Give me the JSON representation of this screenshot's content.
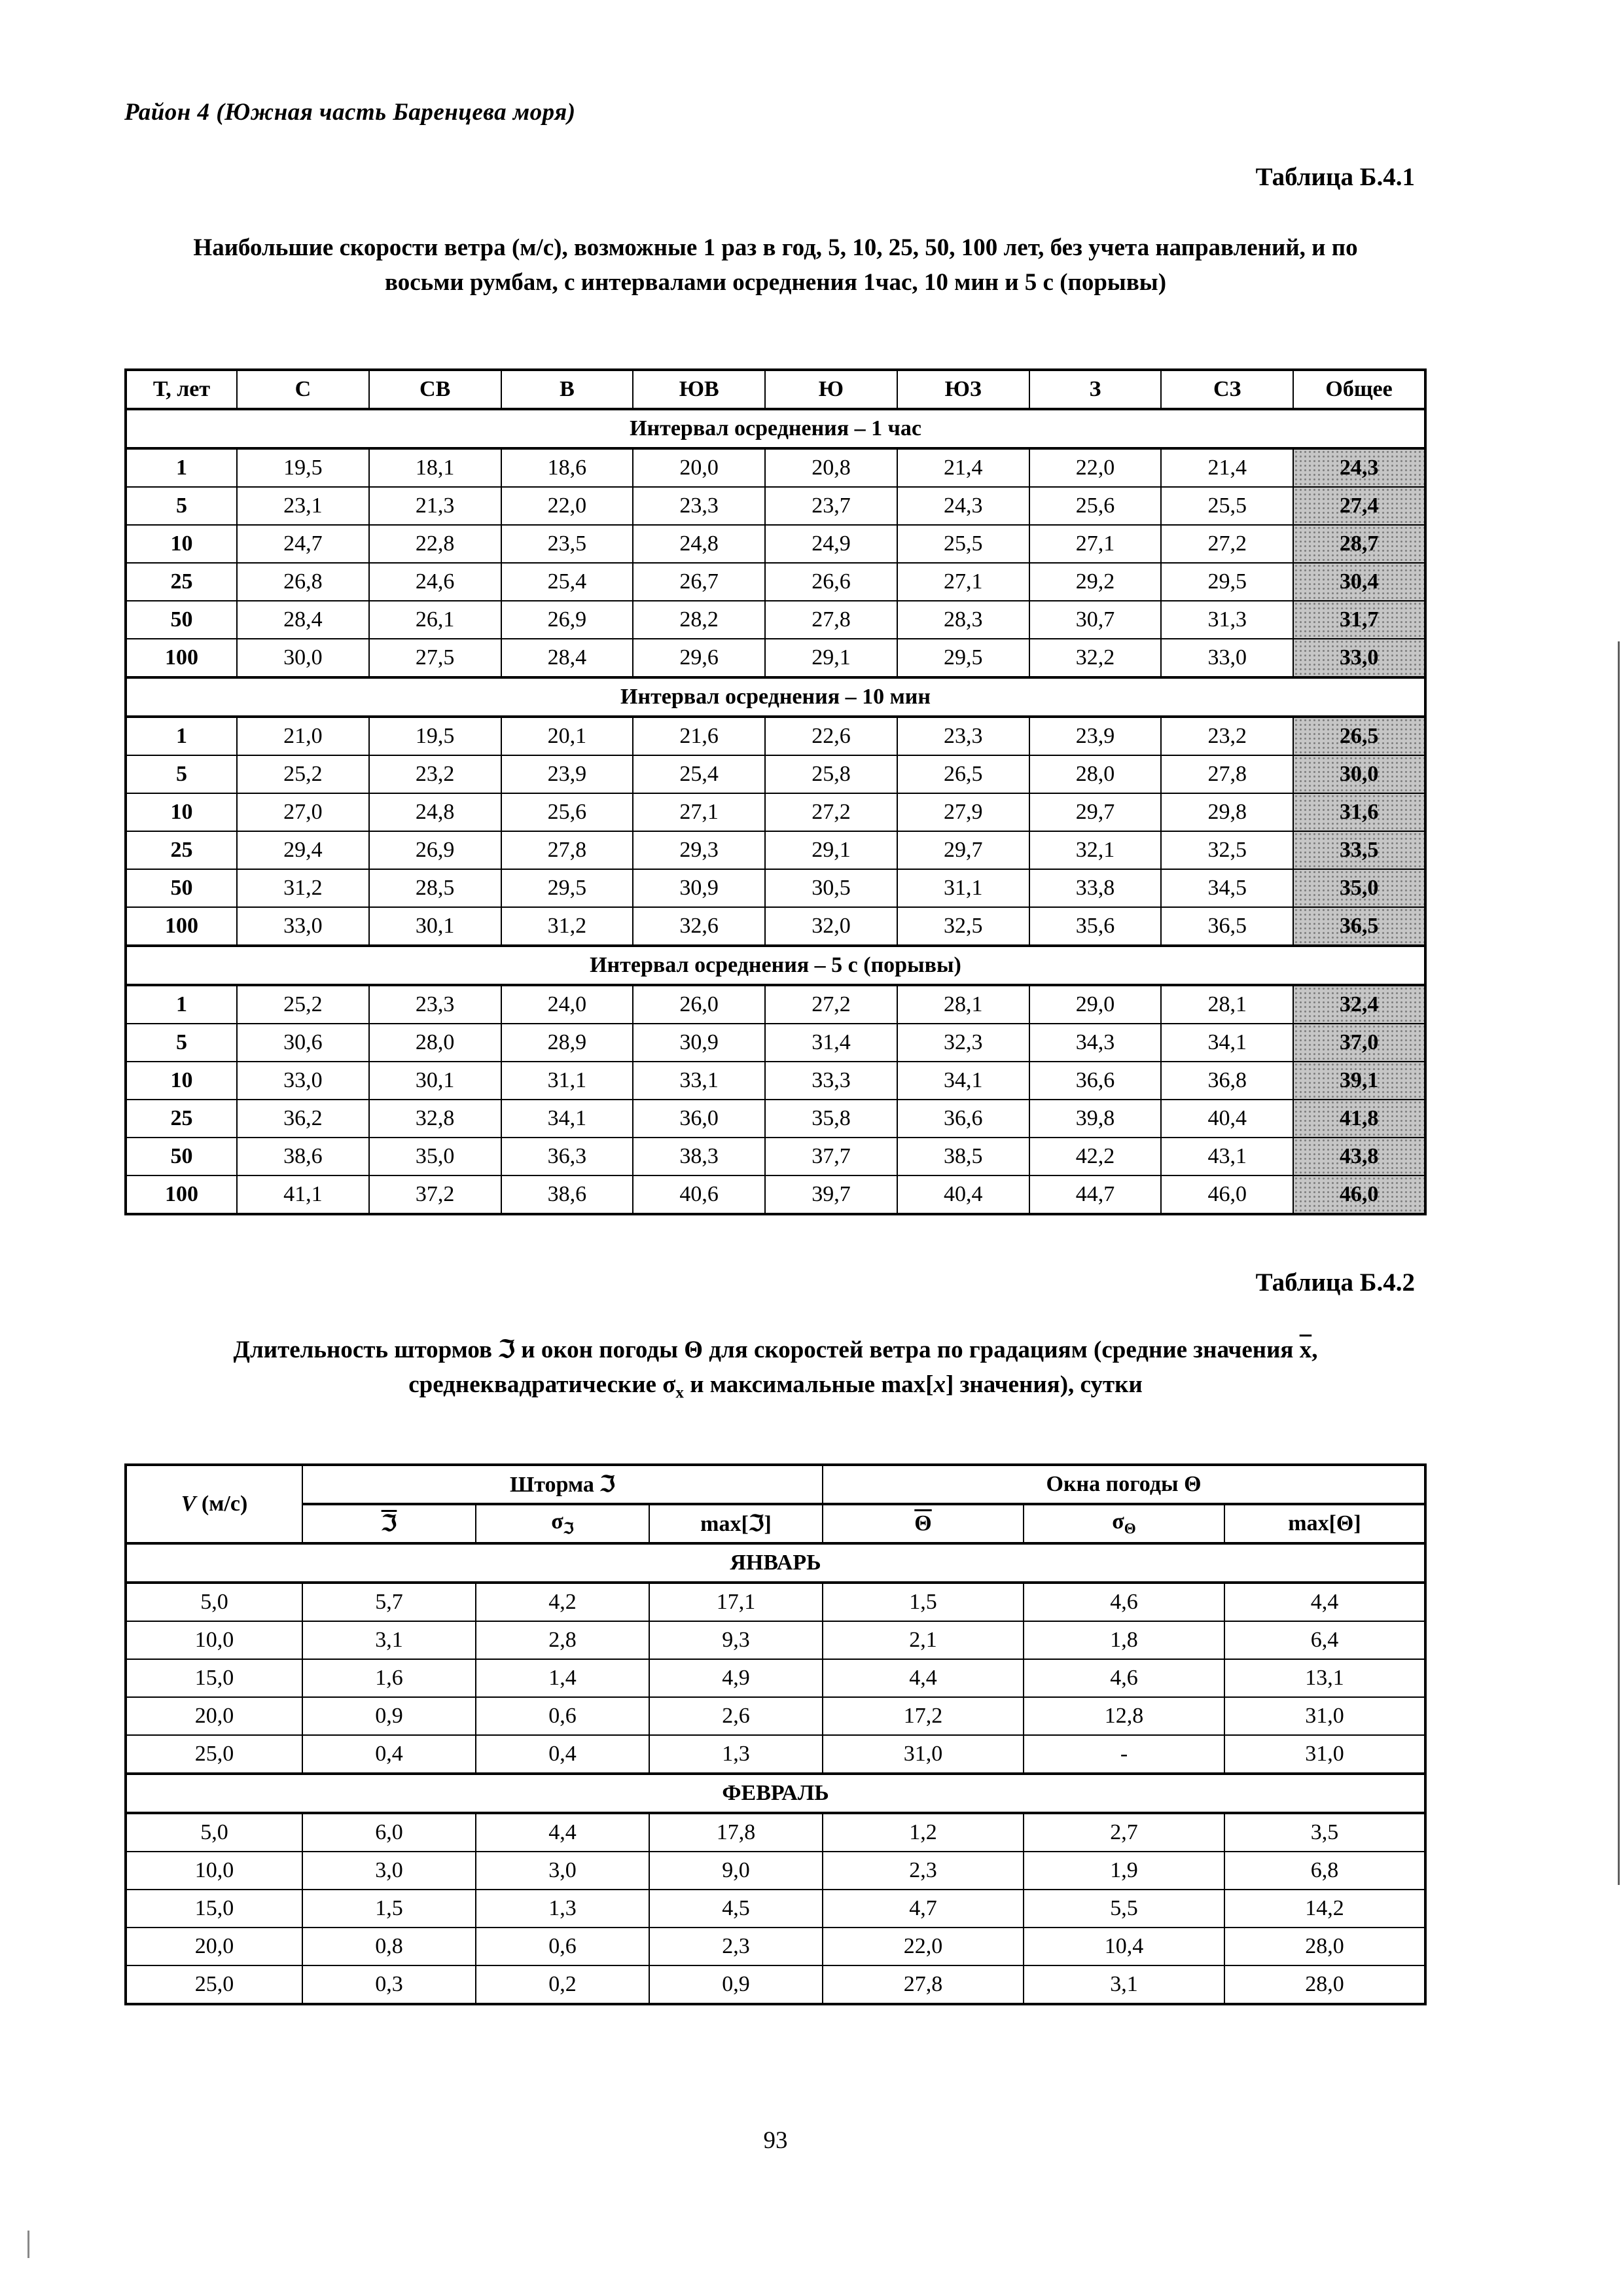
{
  "page": {
    "header": "Район 4 (Южная часть Баренцева моря)",
    "page_number": "93"
  },
  "table1": {
    "caption": "Таблица Б.4.1",
    "title": "Наибольшие скорости ветра (м/с), возможные 1 раз в год, 5, 10, 25, 50, 100 лет, без учета направлений, и по восьми румбам, с интервалами осреднения 1час, 10 мин и 5 с (порывы)",
    "columns": [
      "Т, лет",
      "С",
      "СВ",
      "В",
      "ЮВ",
      "Ю",
      "ЮЗ",
      "З",
      "СЗ",
      "Общее"
    ],
    "sections": [
      {
        "header": "Интервал осреднения – 1 час",
        "rows": [
          [
            "1",
            "19,5",
            "18,1",
            "18,6",
            "20,0",
            "20,8",
            "21,4",
            "22,0",
            "21,4",
            "24,3"
          ],
          [
            "5",
            "23,1",
            "21,3",
            "22,0",
            "23,3",
            "23,7",
            "24,3",
            "25,6",
            "25,5",
            "27,4"
          ],
          [
            "10",
            "24,7",
            "22,8",
            "23,5",
            "24,8",
            "24,9",
            "25,5",
            "27,1",
            "27,2",
            "28,7"
          ],
          [
            "25",
            "26,8",
            "24,6",
            "25,4",
            "26,7",
            "26,6",
            "27,1",
            "29,2",
            "29,5",
            "30,4"
          ],
          [
            "50",
            "28,4",
            "26,1",
            "26,9",
            "28,2",
            "27,8",
            "28,3",
            "30,7",
            "31,3",
            "31,7"
          ],
          [
            "100",
            "30,0",
            "27,5",
            "28,4",
            "29,6",
            "29,1",
            "29,5",
            "32,2",
            "33,0",
            "33,0"
          ]
        ]
      },
      {
        "header": "Интервал осреднения – 10 мин",
        "rows": [
          [
            "1",
            "21,0",
            "19,5",
            "20,1",
            "21,6",
            "22,6",
            "23,3",
            "23,9",
            "23,2",
            "26,5"
          ],
          [
            "5",
            "25,2",
            "23,2",
            "23,9",
            "25,4",
            "25,8",
            "26,5",
            "28,0",
            "27,8",
            "30,0"
          ],
          [
            "10",
            "27,0",
            "24,8",
            "25,6",
            "27,1",
            "27,2",
            "27,9",
            "29,7",
            "29,8",
            "31,6"
          ],
          [
            "25",
            "29,4",
            "26,9",
            "27,8",
            "29,3",
            "29,1",
            "29,7",
            "32,1",
            "32,5",
            "33,5"
          ],
          [
            "50",
            "31,2",
            "28,5",
            "29,5",
            "30,9",
            "30,5",
            "31,1",
            "33,8",
            "34,5",
            "35,0"
          ],
          [
            "100",
            "33,0",
            "30,1",
            "31,2",
            "32,6",
            "32,0",
            "32,5",
            "35,6",
            "36,5",
            "36,5"
          ]
        ]
      },
      {
        "header": "Интервал осреднения – 5 с (порывы)",
        "rows": [
          [
            "1",
            "25,2",
            "23,3",
            "24,0",
            "26,0",
            "27,2",
            "28,1",
            "29,0",
            "28,1",
            "32,4"
          ],
          [
            "5",
            "30,6",
            "28,0",
            "28,9",
            "30,9",
            "31,4",
            "32,3",
            "34,3",
            "34,1",
            "37,0"
          ],
          [
            "10",
            "33,0",
            "30,1",
            "31,1",
            "33,1",
            "33,3",
            "34,1",
            "36,6",
            "36,8",
            "39,1"
          ],
          [
            "25",
            "36,2",
            "32,8",
            "34,1",
            "36,0",
            "35,8",
            "36,6",
            "39,8",
            "40,4",
            "41,8"
          ],
          [
            "50",
            "38,6",
            "35,0",
            "36,3",
            "38,3",
            "37,7",
            "38,5",
            "42,2",
            "43,1",
            "43,8"
          ],
          [
            "100",
            "41,1",
            "37,2",
            "38,6",
            "40,6",
            "39,7",
            "40,4",
            "44,7",
            "46,0",
            "46,0"
          ]
        ]
      }
    ]
  },
  "table2": {
    "caption": "Таблица Б.4.2",
    "title_segments": [
      {
        "t": "Длительность штормов ℑ и окон погоды Θ для скоростей ветра по градациям (средние значения "
      },
      {
        "t": "x",
        "over": true
      },
      {
        "t": ", среднеквадратические σ"
      },
      {
        "t": "x",
        "sub": true
      },
      {
        "t": " и максимальные max["
      },
      {
        "t": "x",
        "i": true
      },
      {
        "t": "] значения), сутки"
      }
    ],
    "v_label": [
      {
        "t": "V",
        "i": true
      },
      {
        "t": " (м/с)"
      }
    ],
    "group_storm": "Шторма ℑ",
    "group_window": "Окна погоды Θ",
    "subcols": [
      [
        {
          "t": "ℑ",
          "over": true
        }
      ],
      [
        {
          "t": "σ"
        },
        {
          "t": "ℑ",
          "sub": true
        }
      ],
      [
        {
          "t": "max[ℑ]"
        }
      ],
      [
        {
          "t": "Θ",
          "over": true
        }
      ],
      [
        {
          "t": "σ"
        },
        {
          "t": "Θ",
          "sub": true
        }
      ],
      [
        {
          "t": "max[Θ]"
        }
      ]
    ],
    "sections": [
      {
        "header": "ЯНВАРЬ",
        "rows": [
          [
            "5,0",
            "5,7",
            "4,2",
            "17,1",
            "1,5",
            "4,6",
            "4,4"
          ],
          [
            "10,0",
            "3,1",
            "2,8",
            "9,3",
            "2,1",
            "1,8",
            "6,4"
          ],
          [
            "15,0",
            "1,6",
            "1,4",
            "4,9",
            "4,4",
            "4,6",
            "13,1"
          ],
          [
            "20,0",
            "0,9",
            "0,6",
            "2,6",
            "17,2",
            "12,8",
            "31,0"
          ],
          [
            "25,0",
            "0,4",
            "0,4",
            "1,3",
            "31,0",
            "-",
            "31,0"
          ]
        ]
      },
      {
        "header": "ФЕВРАЛЬ",
        "rows": [
          [
            "5,0",
            "6,0",
            "4,4",
            "17,8",
            "1,2",
            "2,7",
            "3,5"
          ],
          [
            "10,0",
            "3,0",
            "3,0",
            "9,0",
            "2,3",
            "1,9",
            "6,8"
          ],
          [
            "15,0",
            "1,5",
            "1,3",
            "4,5",
            "4,7",
            "5,5",
            "14,2"
          ],
          [
            "20,0",
            "0,8",
            "0,6",
            "2,3",
            "22,0",
            "10,4",
            "28,0"
          ],
          [
            "25,0",
            "0,3",
            "0,2",
            "0,9",
            "27,8",
            "3,1",
            "28,0"
          ]
        ]
      }
    ]
  }
}
